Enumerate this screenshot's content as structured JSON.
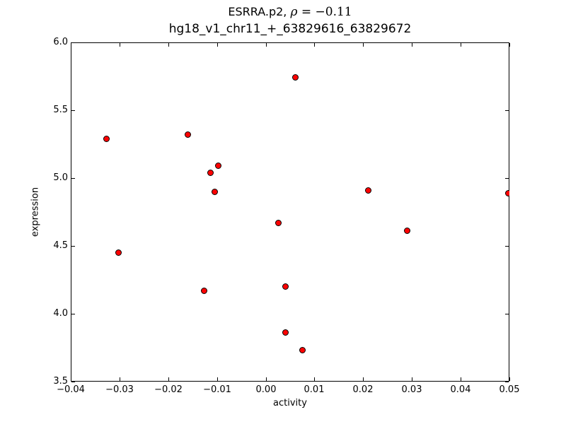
{
  "chart_data": {
    "type": "scatter",
    "title": {
      "prefix": "ESRRA.p2, ",
      "rho_symbol": "ρ",
      "rho_value": " = −0.11",
      "line2": "hg18_v1_chr11_+_63829616_63829672"
    },
    "correlation_rho": -0.11,
    "xlabel": "activity",
    "ylabel": "expression",
    "xlim": [
      -0.04,
      0.05
    ],
    "ylim": [
      3.5,
      6.0
    ],
    "grid": false,
    "legend": "none",
    "x_ticks": {
      "values": [
        -0.04,
        -0.03,
        -0.02,
        -0.01,
        0.0,
        0.01,
        0.02,
        0.03,
        0.04,
        0.05
      ],
      "labels": [
        "−0.04",
        "−0.03",
        "−0.02",
        "−0.01",
        "0.00",
        "0.01",
        "0.02",
        "0.03",
        "0.04",
        "0.05"
      ]
    },
    "y_ticks": {
      "values": [
        3.5,
        4.0,
        4.5,
        5.0,
        5.5,
        6.0
      ],
      "labels": [
        "3.5",
        "4.0",
        "4.5",
        "5.0",
        "5.5",
        "6.0"
      ]
    },
    "points": [
      {
        "x": -0.0326,
        "y": 5.29
      },
      {
        "x": -0.0302,
        "y": 4.45
      },
      {
        "x": -0.016,
        "y": 5.32
      },
      {
        "x": -0.0127,
        "y": 4.17
      },
      {
        "x": -0.0114,
        "y": 5.04
      },
      {
        "x": -0.0104,
        "y": 4.9
      },
      {
        "x": -0.0098,
        "y": 5.09
      },
      {
        "x": 0.0026,
        "y": 4.67
      },
      {
        "x": 0.004,
        "y": 4.2
      },
      {
        "x": 0.004,
        "y": 3.86
      },
      {
        "x": 0.0061,
        "y": 5.74
      },
      {
        "x": 0.0076,
        "y": 3.73
      },
      {
        "x": 0.021,
        "y": 4.91
      },
      {
        "x": 0.029,
        "y": 4.61
      },
      {
        "x": 0.0498,
        "y": 4.89
      }
    ],
    "style": {
      "marker_color": "#ff0000",
      "marker_edge_color": "#000000",
      "axis_color": "#000000",
      "background": "#ffffff"
    }
  }
}
